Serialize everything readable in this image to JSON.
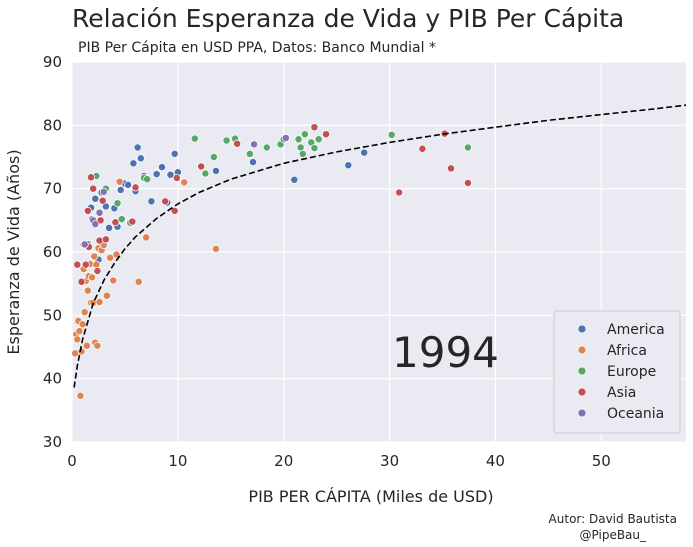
{
  "title": "Relación Esperanza de Vida y PIB Per Cápita",
  "subtitle": "PIB Per Cápita en USD PPA, Datos: Banco Mundial *",
  "credit": [
    "Autor: David Bautista",
    "@PipeBau_"
  ],
  "colors": {
    "background": "#eaeaf2",
    "grid": "#ffffff",
    "America": "#4c72b0",
    "Africa": "#dd8452",
    "Europe": "#55a868",
    "Asia": "#c44e52",
    "Oceania": "#8172b3",
    "trend": "#000000"
  },
  "chart_data": {
    "type": "scatter",
    "xlabel": "PIB PER CÁPITA (Miles de USD)",
    "ylabel": "Esperanza de Vida (Años)",
    "xlim": [
      0,
      58
    ],
    "ylim": [
      30,
      90
    ],
    "xticks": [
      0,
      10,
      20,
      30,
      40,
      50
    ],
    "yticks": [
      30,
      40,
      50,
      60,
      70,
      80,
      90
    ],
    "grid": true,
    "legend_position": "bottom-right",
    "annotation": "1994",
    "trendline": {
      "style": "dashed",
      "points": [
        [
          0.2,
          38.6
        ],
        [
          0.5,
          42.0
        ],
        [
          1,
          46.2
        ],
        [
          2,
          51.9
        ],
        [
          3,
          55.5
        ],
        [
          4,
          58.2
        ],
        [
          5,
          60.5
        ],
        [
          6,
          62.4
        ],
        [
          8,
          65.3
        ],
        [
          10,
          67.6
        ],
        [
          12,
          69.4
        ],
        [
          15,
          71.5
        ],
        [
          20,
          74.0
        ],
        [
          25,
          75.8
        ],
        [
          30,
          77.3
        ],
        [
          35,
          78.6
        ],
        [
          40,
          79.7
        ],
        [
          45,
          80.8
        ],
        [
          50,
          81.7
        ],
        [
          55,
          82.6
        ],
        [
          58,
          83.2
        ]
      ]
    },
    "series": [
      {
        "name": "America",
        "points": [
          [
            1.2,
            55.4
          ],
          [
            1.5,
            61.2
          ],
          [
            1.8,
            67.0
          ],
          [
            2.2,
            68.4
          ],
          [
            2.5,
            58.8
          ],
          [
            2.8,
            69.4
          ],
          [
            3.2,
            67.2
          ],
          [
            3.5,
            63.8
          ],
          [
            4.0,
            66.9
          ],
          [
            4.3,
            64.0
          ],
          [
            4.6,
            69.8
          ],
          [
            5.0,
            70.8
          ],
          [
            5.3,
            70.6
          ],
          [
            5.8,
            74.0
          ],
          [
            6.0,
            69.6
          ],
          [
            6.2,
            76.5
          ],
          [
            6.5,
            74.8
          ],
          [
            6.8,
            72.0
          ],
          [
            7.0,
            71.6
          ],
          [
            7.5,
            68.0
          ],
          [
            8.0,
            72.3
          ],
          [
            8.5,
            73.4
          ],
          [
            9.0,
            67.8
          ],
          [
            9.3,
            72.2
          ],
          [
            9.7,
            75.5
          ],
          [
            10.0,
            72.6
          ],
          [
            13.6,
            72.8
          ],
          [
            17.1,
            74.2
          ],
          [
            21.0,
            71.4
          ],
          [
            26.1,
            73.7
          ],
          [
            27.6,
            75.7
          ]
        ]
      },
      {
        "name": "Africa",
        "points": [
          [
            0.3,
            44.0
          ],
          [
            0.4,
            47.0
          ],
          [
            0.5,
            46.2
          ],
          [
            0.6,
            49.1
          ],
          [
            0.7,
            47.5
          ],
          [
            0.8,
            37.3
          ],
          [
            0.9,
            44.3
          ],
          [
            1.0,
            48.6
          ],
          [
            1.1,
            57.3
          ],
          [
            1.2,
            50.5
          ],
          [
            1.3,
            55.4
          ],
          [
            1.4,
            45.2
          ],
          [
            1.5,
            53.9
          ],
          [
            1.6,
            56.2
          ],
          [
            1.7,
            58.1
          ],
          [
            1.8,
            52.0
          ],
          [
            1.9,
            56.0
          ],
          [
            2.0,
            52.0
          ],
          [
            2.1,
            59.3
          ],
          [
            2.2,
            45.7
          ],
          [
            2.3,
            58.0
          ],
          [
            2.4,
            45.2
          ],
          [
            2.5,
            60.6
          ],
          [
            2.6,
            52.1
          ],
          [
            2.8,
            60.3
          ],
          [
            3.0,
            61.1
          ],
          [
            3.3,
            53.1
          ],
          [
            3.6,
            59.1
          ],
          [
            3.9,
            55.5
          ],
          [
            4.2,
            59.6
          ],
          [
            4.5,
            71.1
          ],
          [
            6.3,
            55.3
          ],
          [
            7.0,
            62.3
          ],
          [
            10.6,
            71.0
          ],
          [
            13.6,
            60.5
          ]
        ]
      },
      {
        "name": "Europe",
        "points": [
          [
            2.3,
            72.0
          ],
          [
            3.2,
            70.0
          ],
          [
            4.3,
            67.7
          ],
          [
            4.7,
            65.2
          ],
          [
            5.5,
            64.6
          ],
          [
            6.8,
            71.7
          ],
          [
            7.1,
            71.5
          ],
          [
            11.6,
            77.9
          ],
          [
            13.4,
            75.0
          ],
          [
            14.6,
            77.6
          ],
          [
            15.4,
            77.9
          ],
          [
            16.8,
            75.5
          ],
          [
            18.4,
            76.5
          ],
          [
            19.7,
            77.0
          ],
          [
            20.0,
            77.8
          ],
          [
            21.4,
            77.8
          ],
          [
            21.6,
            76.5
          ],
          [
            21.8,
            75.5
          ],
          [
            22.0,
            78.6
          ],
          [
            22.6,
            77.3
          ],
          [
            22.9,
            76.4
          ],
          [
            23.3,
            77.8
          ],
          [
            30.2,
            78.5
          ],
          [
            37.4,
            76.5
          ],
          [
            12.6,
            72.4
          ]
        ]
      },
      {
        "name": "Asia",
        "points": [
          [
            0.5,
            58.0
          ],
          [
            0.9,
            55.3
          ],
          [
            1.1,
            61.2
          ],
          [
            1.3,
            58.0
          ],
          [
            1.5,
            66.5
          ],
          [
            1.6,
            60.8
          ],
          [
            1.8,
            71.8
          ],
          [
            2.0,
            70.0
          ],
          [
            2.4,
            57.0
          ],
          [
            2.6,
            61.8
          ],
          [
            2.7,
            65.0
          ],
          [
            2.9,
            68.1
          ],
          [
            3.2,
            62.0
          ],
          [
            4.1,
            64.7
          ],
          [
            5.7,
            64.8
          ],
          [
            6.0,
            70.2
          ],
          [
            8.8,
            68.0
          ],
          [
            9.7,
            66.5
          ],
          [
            9.9,
            71.7
          ],
          [
            12.2,
            73.5
          ],
          [
            15.6,
            77.1
          ],
          [
            22.9,
            79.7
          ],
          [
            24.0,
            78.6
          ],
          [
            30.9,
            69.4
          ],
          [
            33.1,
            76.3
          ],
          [
            35.2,
            78.7
          ],
          [
            35.8,
            73.2
          ],
          [
            37.4,
            70.9
          ]
        ]
      },
      {
        "name": "Oceania",
        "points": [
          [
            1.2,
            61.2
          ],
          [
            1.9,
            65.2
          ],
          [
            2.0,
            65.0
          ],
          [
            2.2,
            64.4
          ],
          [
            2.6,
            66.2
          ],
          [
            3.0,
            69.5
          ],
          [
            17.2,
            77.0
          ],
          [
            20.2,
            78.0
          ]
        ]
      }
    ]
  }
}
